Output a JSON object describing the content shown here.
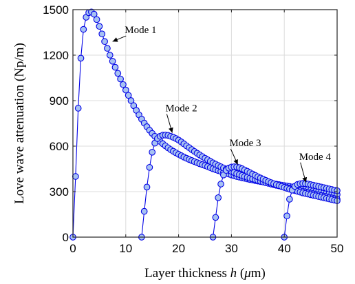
{
  "chart_data": {
    "type": "line",
    "xlabel": "Layer thickness h (μm)",
    "xlabel_parts": {
      "pre": "Layer thickness ",
      "var": "h",
      "post": " (",
      "unit_greek": "μ",
      "unit_rest": "m)"
    },
    "ylabel": "Love wave attenuation (Np/m)",
    "xlim": [
      0,
      50
    ],
    "ylim": [
      0,
      1500
    ],
    "xticks": [
      0,
      10,
      20,
      30,
      40,
      50
    ],
    "yticks": [
      0,
      300,
      600,
      900,
      1200,
      1500
    ],
    "grid": true,
    "colors": {
      "line": "#0000e6",
      "marker_fill": "#a7c2f2"
    },
    "series": [
      {
        "x": [
          0,
          0.5,
          1,
          1.5,
          2,
          2.5,
          3,
          3.5,
          4,
          4.5,
          5,
          5.5,
          6,
          6.5,
          7,
          7.5,
          8,
          8.5,
          9,
          9.5,
          10,
          10.5,
          11,
          11.5,
          12,
          12.5,
          13,
          13.5,
          14,
          14.5,
          15,
          15.5,
          16,
          16.5,
          17,
          17.5,
          18,
          18.5,
          19,
          19.5,
          20,
          20.5,
          21,
          21.5,
          22,
          22.5,
          23,
          23.5,
          24,
          24.5,
          25,
          25.5,
          26,
          26.5,
          27,
          27.5,
          28,
          28.5,
          29,
          29.5,
          30,
          30.5,
          31,
          31.5,
          32,
          32.5,
          33,
          33.5,
          34,
          34.5,
          35,
          35.5,
          36,
          36.5,
          37,
          37.5,
          38,
          38.5,
          39,
          39.5,
          40,
          40.5,
          41,
          41.5,
          42,
          42.5,
          43,
          43.5,
          44,
          44.5,
          45,
          45.5,
          46,
          46.5,
          47,
          47.5,
          48,
          48.5,
          49,
          49.5,
          50
        ],
        "y": [
          0,
          400,
          850,
          1180,
          1370,
          1450,
          1480,
          1485,
          1470,
          1435,
          1390,
          1340,
          1290,
          1245,
          1200,
          1160,
          1120,
          1080,
          1043,
          1006,
          970,
          935,
          900,
          867,
          836,
          806,
          778,
          752,
          728,
          705,
          684,
          665,
          647,
          631,
          616,
          602,
          589,
          577,
          566,
          556,
          546,
          537,
          528,
          520,
          512,
          505,
          498,
          491,
          484,
          478,
          472,
          465,
          458,
          451,
          445,
          439,
          433,
          427,
          421,
          416,
          410,
          405,
          400,
          396,
          392,
          388,
          384,
          380,
          377,
          373,
          370,
          367,
          364,
          361,
          358,
          355,
          352,
          349,
          346,
          343,
          340,
          337,
          334,
          331,
          328,
          325,
          322,
          319,
          316,
          313,
          310,
          307,
          304,
          301,
          298,
          295,
          292,
          289,
          286,
          283,
          280
        ]
      },
      {
        "x": [
          13,
          13.5,
          14,
          14.5,
          15,
          15.5,
          16,
          16.5,
          17,
          17.5,
          18,
          18.5,
          19,
          19.5,
          20,
          20.5,
          21,
          21.5,
          22,
          22.5,
          23,
          23.5,
          24,
          24.5,
          25,
          25.5,
          26,
          26.5,
          27,
          27.5,
          28,
          28.5,
          29,
          29.5,
          30,
          30.5,
          31,
          31.5,
          32,
          32.5,
          33,
          33.5,
          34,
          34.5,
          35,
          35.5,
          36,
          36.5,
          37,
          37.5,
          38,
          38.5,
          39,
          39.5,
          40,
          40.5,
          41,
          41.5,
          42,
          42.5,
          43,
          43.5,
          44,
          44.5,
          45,
          45.5,
          46,
          46.5,
          47,
          47.5,
          48,
          48.5,
          49,
          49.5,
          50
        ],
        "y": [
          0,
          170,
          330,
          460,
          560,
          620,
          650,
          665,
          672,
          673,
          671,
          665,
          658,
          650,
          640,
          628,
          615,
          602,
          590,
          577,
          565,
          553,
          542,
          531,
          520,
          510,
          500,
          490,
          481,
          472,
          464,
          456,
          448,
          440,
          433,
          426,
          419,
          413,
          406,
          400,
          395,
          389,
          384,
          379,
          374,
          369,
          364,
          359,
          355,
          350,
          346,
          342,
          338,
          334,
          330,
          326,
          322,
          318,
          314,
          310,
          306,
          302,
          298,
          294,
          290,
          286,
          282,
          278,
          274,
          270,
          266,
          262,
          258,
          254,
          250
        ]
      },
      {
        "x": [
          26.5,
          27,
          27.5,
          28,
          28.5,
          29,
          29.5,
          30,
          30.5,
          31,
          31.5,
          32,
          32.5,
          33,
          33.5,
          34,
          34.5,
          35,
          35.5,
          36,
          36.5,
          37,
          37.5,
          38,
          38.5,
          39,
          39.5,
          40,
          40.5,
          41,
          41.5,
          42,
          42.5,
          43,
          43.5,
          44,
          44.5,
          45,
          45.5,
          46,
          46.5,
          47,
          47.5,
          48,
          48.5,
          49,
          49.5,
          50
        ],
        "y": [
          0,
          130,
          260,
          350,
          410,
          440,
          455,
          462,
          464,
          463,
          458,
          451,
          443,
          434,
          425,
          416,
          407,
          398,
          390,
          382,
          374,
          366,
          359,
          352,
          346,
          340,
          334,
          328,
          322,
          317,
          312,
          307,
          302,
          297,
          292,
          288,
          284,
          280,
          276,
          272,
          268,
          264,
          260,
          256,
          252,
          248,
          244,
          240
        ]
      },
      {
        "x": [
          40,
          40.5,
          41,
          41.5,
          42,
          42.5,
          43,
          43.5,
          44,
          44.5,
          45,
          45.5,
          46,
          46.5,
          47,
          47.5,
          48,
          48.5,
          49,
          49.5,
          50
        ],
        "y": [
          0,
          140,
          250,
          310,
          335,
          347,
          352,
          354,
          353,
          350,
          346,
          342,
          338,
          334,
          330,
          326,
          322,
          318,
          314,
          310,
          306
        ]
      }
    ],
    "annotations": [
      {
        "text": "Mode 1",
        "arrow_to": [
          7.5,
          1290
        ],
        "text_at": [
          9.8,
          1345
        ]
      },
      {
        "text": "Mode 2",
        "arrow_to": [
          18.8,
          688
        ],
        "text_at": [
          17.5,
          830
        ]
      },
      {
        "text": "Mode 3",
        "arrow_to": [
          31.2,
          478
        ],
        "text_at": [
          29.6,
          600
        ]
      },
      {
        "text": "Mode 4",
        "arrow_to": [
          44.1,
          360
        ],
        "text_at": [
          42.8,
          510
        ]
      }
    ]
  }
}
